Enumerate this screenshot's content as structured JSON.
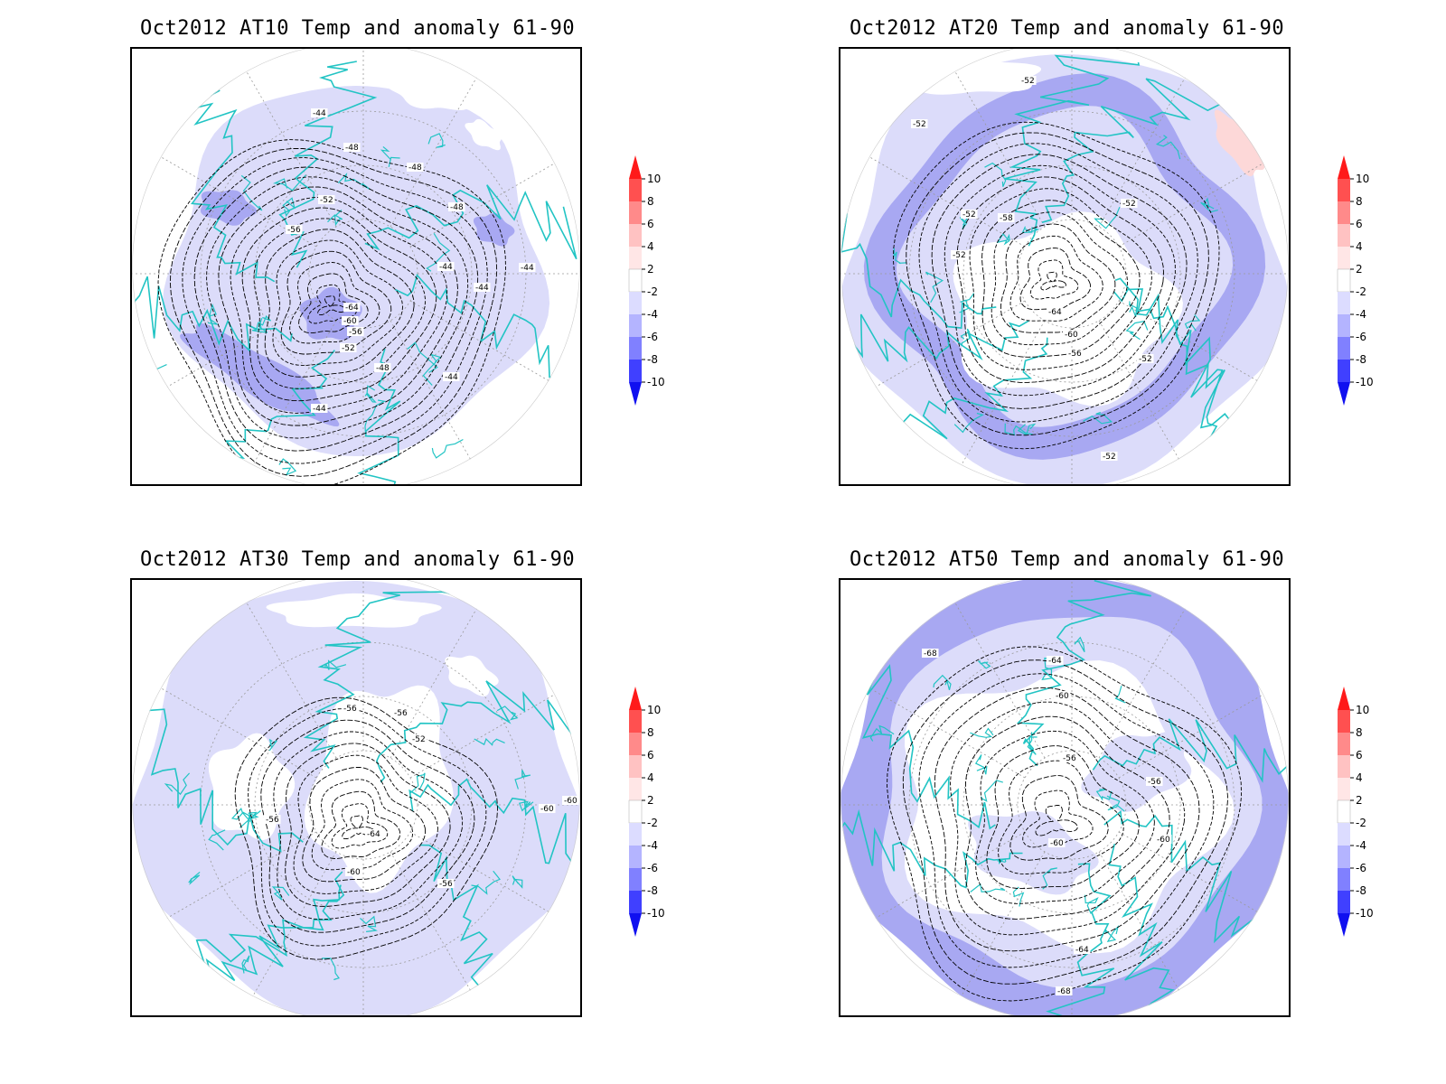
{
  "panels": [
    {
      "title": "Oct2012 AT10 Temp and anomaly 61-90",
      "contour_labels": [
        "-44",
        "-48",
        "-48",
        "-48",
        "-52",
        "-56",
        "-64",
        "-60",
        "-56",
        "-52",
        "-48",
        "-44",
        "-44",
        "-44",
        "-44",
        "-44"
      ]
    },
    {
      "title": "Oct2012 AT20 Temp and anomaly 61-90",
      "contour_labels": [
        "-52",
        "-52",
        "-52",
        "-58",
        "-52",
        "-52",
        "-64",
        "-60",
        "-56",
        "-52",
        "-52"
      ]
    },
    {
      "title": "Oct2012 AT30 Temp and anomaly 61-90",
      "contour_labels": [
        "-56",
        "-56",
        "-52",
        "-56",
        "-64",
        "-60",
        "-56",
        "-60",
        "-60"
      ]
    },
    {
      "title": "Oct2012 AT50 Temp and anomaly 61-90",
      "contour_labels": [
        "-68",
        "-64",
        "-60",
        "-56",
        "-56",
        "-60",
        "-60",
        "-64",
        "-68"
      ]
    }
  ],
  "colorbar": {
    "levels": [
      "10",
      "8",
      "6",
      "4",
      "2",
      "-2",
      "-4",
      "-6",
      "-8",
      "-10"
    ],
    "colors": [
      "#ff1a1a",
      "#ff5050",
      "#ff8a8a",
      "#ffc2c2",
      "#ffe6e6",
      "#ffffff",
      "#dcdcff",
      "#b4b4ff",
      "#8080ff",
      "#4040ff",
      "#1010f0"
    ]
  },
  "map_colors": {
    "coast": "#22c4c4",
    "anom_light": "#dcdcfa",
    "anom_mid": "#a8a8f2",
    "anom_pos": "#fdd8d8",
    "contour": "#000000",
    "grid": "#9a9a9a"
  }
}
